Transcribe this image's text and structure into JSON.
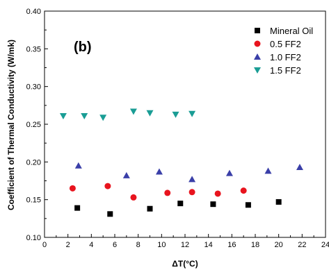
{
  "chart_data": {
    "type": "scatter",
    "panel_label": "(b)",
    "xlabel": "ΔT(°C)",
    "ylabel": "Coefficient of Thermal Conductivity (W/mk)",
    "xlim": [
      0,
      24
    ],
    "ylim": [
      0.1,
      0.4
    ],
    "x_ticks": [
      "0",
      "2",
      "4",
      "6",
      "8",
      "10",
      "12",
      "14",
      "16",
      "18",
      "20",
      "22",
      "24"
    ],
    "y_ticks": [
      "0.10",
      "0.15",
      "0.20",
      "0.25",
      "0.30",
      "0.35",
      "0.40"
    ],
    "legend_position": "top-right",
    "grid": false,
    "series": [
      {
        "name": "Mineral Oil",
        "marker": "square",
        "color": "#000000",
        "points": [
          [
            2.8,
            0.139
          ],
          [
            5.6,
            0.131
          ],
          [
            9.0,
            0.138
          ],
          [
            11.6,
            0.145
          ],
          [
            14.4,
            0.144
          ],
          [
            17.4,
            0.143
          ],
          [
            20.0,
            0.147
          ]
        ]
      },
      {
        "name": "0.5 FF2",
        "marker": "circle",
        "color": "#e8141e",
        "points": [
          [
            2.4,
            0.165
          ],
          [
            5.4,
            0.168
          ],
          [
            7.6,
            0.153
          ],
          [
            10.5,
            0.159
          ],
          [
            12.6,
            0.16
          ],
          [
            14.8,
            0.158
          ],
          [
            17.0,
            0.162
          ]
        ]
      },
      {
        "name": "1.0 FF2",
        "marker": "triangle-up",
        "color": "#3a3fa8",
        "points": [
          [
            2.9,
            0.195
          ],
          [
            7.0,
            0.182
          ],
          [
            9.8,
            0.187
          ],
          [
            12.6,
            0.177
          ],
          [
            15.8,
            0.185
          ],
          [
            19.1,
            0.188
          ],
          [
            21.8,
            0.193
          ]
        ]
      },
      {
        "name": "1.5 FF2",
        "marker": "triangle-down",
        "color": "#1a9d95",
        "points": [
          [
            1.6,
            0.261
          ],
          [
            3.4,
            0.261
          ],
          [
            5.0,
            0.259
          ],
          [
            7.6,
            0.267
          ],
          [
            9.0,
            0.265
          ],
          [
            11.2,
            0.263
          ],
          [
            12.6,
            0.264
          ]
        ]
      }
    ]
  }
}
